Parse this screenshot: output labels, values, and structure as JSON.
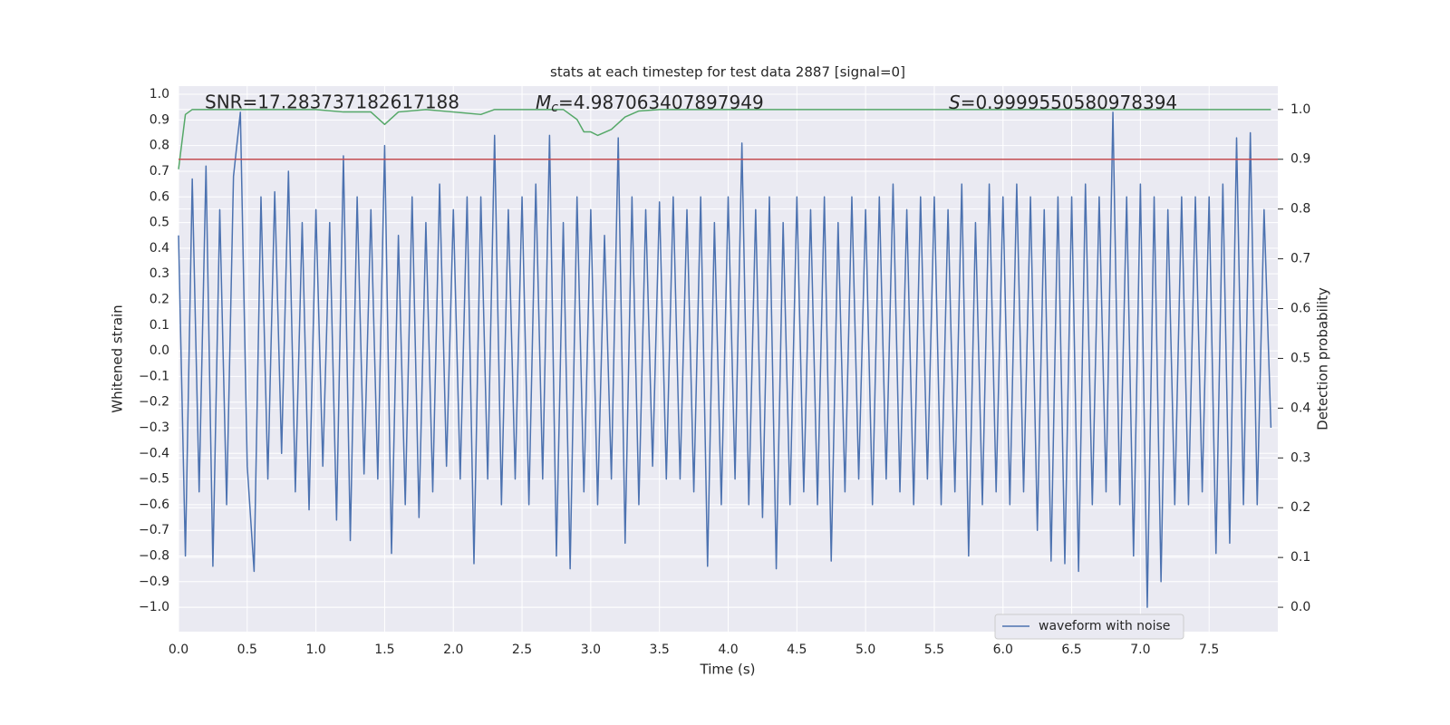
{
  "chart_data": {
    "type": "line",
    "title": "stats at each timestep for test data 2887 [signal=0]",
    "xlabel": "Time (s)",
    "ylabel": "Whitened strain",
    "y2label": "Detection probability",
    "annotations": [
      {
        "text": "SNR=17.283737182617188"
      },
      {
        "symbol": "M",
        "sub": "c",
        "text": "=4.987063407897949"
      },
      {
        "symbol": "S",
        "text": "=0.9999550580978394"
      }
    ],
    "xlim": [
      0,
      8
    ],
    "ylim": [
      -1.095,
      1.032
    ],
    "y2lim": [
      -0.049,
      1.047
    ],
    "xticks": [
      {
        "value": 0,
        "label": "0.0"
      },
      0.5,
      {
        "value": 1,
        "label": "1.0"
      },
      1.5,
      {
        "value": 2,
        "label": "2.0"
      },
      2.5,
      {
        "value": 3,
        "label": "3.0"
      },
      3.5,
      {
        "value": 4,
        "label": "4.0"
      },
      4.5,
      {
        "value": 5,
        "label": "5.0"
      },
      5.5,
      {
        "value": 6,
        "label": "6.0"
      },
      6.5,
      {
        "value": 7,
        "label": "7.0"
      },
      7.5
    ],
    "yticks": [
      {
        "value": -1.0,
        "label": "−1.0"
      },
      {
        "value": -0.9,
        "label": "−0.9"
      },
      {
        "value": -0.8,
        "label": "−0.8"
      },
      {
        "value": -0.7,
        "label": "−0.7"
      },
      {
        "value": -0.6,
        "label": "−0.6"
      },
      {
        "value": -0.5,
        "label": "−0.5"
      },
      {
        "value": -0.4,
        "label": "−0.4"
      },
      {
        "value": -0.3,
        "label": "−0.3"
      },
      {
        "value": -0.2,
        "label": "−0.2"
      },
      {
        "value": -0.1,
        "label": "−0.1"
      },
      {
        "value": 0,
        "label": "0.0"
      },
      0.1,
      0.2,
      0.3,
      0.4,
      0.5,
      0.6,
      0.7,
      0.8,
      0.9,
      {
        "value": 1.0,
        "label": "1.0"
      }
    ],
    "y2ticks": [
      {
        "value": 0,
        "label": "0.0"
      },
      0.1,
      0.2,
      0.3,
      0.4,
      0.5,
      0.6,
      0.7,
      0.8,
      0.9,
      {
        "value": 1.0,
        "label": "1.0"
      }
    ],
    "grid": true,
    "legend": "lower right",
    "threshold": {
      "value": 0.9,
      "color": "#c44e52",
      "axis": "y2"
    },
    "series": [
      {
        "name": "waveform with noise",
        "color": "#4c72b0",
        "x": [
          0,
          0.05,
          0.1,
          0.15,
          0.2,
          0.25,
          0.3,
          0.35,
          0.4,
          0.45,
          0.5,
          0.55,
          0.6,
          0.65,
          0.7,
          0.75,
          0.8,
          0.85,
          0.9,
          0.95,
          1,
          1.05,
          1.1,
          1.15,
          1.2,
          1.25,
          1.3,
          1.35,
          1.4,
          1.45,
          1.5,
          1.55,
          1.6,
          1.65,
          1.7,
          1.75,
          1.8,
          1.85,
          1.9,
          1.95,
          2,
          2.05,
          2.1,
          2.15,
          2.2,
          2.25,
          2.3,
          2.35,
          2.4,
          2.45,
          2.5,
          2.55,
          2.6,
          2.65,
          2.7,
          2.75,
          2.8,
          2.85,
          2.9,
          2.95,
          3,
          3.05,
          3.1,
          3.15,
          3.2,
          3.25,
          3.3,
          3.35,
          3.4,
          3.45,
          3.5,
          3.55,
          3.6,
          3.65,
          3.7,
          3.75,
          3.8,
          3.85,
          3.9,
          3.95,
          4,
          4.05,
          4.1,
          4.15,
          4.2,
          4.25,
          4.3,
          4.35,
          4.4,
          4.45,
          4.5,
          4.55,
          4.6,
          4.65,
          4.7,
          4.75,
          4.8,
          4.85,
          4.9,
          4.95,
          5,
          5.05,
          5.1,
          5.15,
          5.2,
          5.25,
          5.3,
          5.35,
          5.4,
          5.45,
          5.5,
          5.55,
          5.6,
          5.65,
          5.7,
          5.75,
          5.8,
          5.85,
          5.9,
          5.95,
          6,
          6.05,
          6.1,
          6.15,
          6.2,
          6.25,
          6.3,
          6.35,
          6.4,
          6.45,
          6.5,
          6.55,
          6.6,
          6.65,
          6.7,
          6.75,
          6.8,
          6.85,
          6.9,
          6.95,
          7,
          7.05,
          7.1,
          7.15,
          7.2,
          7.25,
          7.3,
          7.35,
          7.4,
          7.45,
          7.5,
          7.55,
          7.6,
          7.65,
          7.7,
          7.75,
          7.8,
          7.85,
          7.9,
          7.95
        ],
        "values": [
          0.45,
          -0.8,
          0.67,
          -0.55,
          0.72,
          -0.84,
          0.55,
          -0.6,
          0.68,
          0.93,
          -0.45,
          -0.86,
          0.6,
          -0.5,
          0.62,
          -0.4,
          0.7,
          -0.55,
          0.5,
          -0.62,
          0.55,
          -0.45,
          0.5,
          -0.66,
          0.76,
          -0.74,
          0.6,
          -0.48,
          0.55,
          -0.5,
          0.8,
          -0.79,
          0.45,
          -0.6,
          0.6,
          -0.65,
          0.5,
          -0.55,
          0.65,
          -0.45,
          0.55,
          -0.5,
          0.6,
          -0.83,
          0.6,
          -0.5,
          0.84,
          -0.6,
          0.55,
          -0.5,
          0.6,
          -0.6,
          0.65,
          -0.5,
          0.84,
          -0.8,
          0.5,
          -0.85,
          0.6,
          -0.55,
          0.55,
          -0.6,
          0.45,
          -0.5,
          0.83,
          -0.75,
          0.6,
          -0.6,
          0.55,
          -0.45,
          0.58,
          -0.5,
          0.6,
          -0.5,
          0.55,
          -0.55,
          0.6,
          -0.84,
          0.5,
          -0.6,
          0.6,
          -0.5,
          0.81,
          -0.6,
          0.55,
          -0.65,
          0.6,
          -0.85,
          0.5,
          -0.6,
          0.6,
          -0.55,
          0.55,
          -0.6,
          0.6,
          -0.82,
          0.5,
          -0.55,
          0.6,
          -0.5,
          0.55,
          -0.6,
          0.6,
          -0.5,
          0.65,
          -0.55,
          0.55,
          -0.6,
          0.6,
          -0.5,
          0.6,
          -0.6,
          0.55,
          -0.55,
          0.65,
          -0.8,
          0.5,
          -0.6,
          0.65,
          -0.55,
          0.6,
          -0.6,
          0.65,
          -0.55,
          0.6,
          -0.7,
          0.55,
          -0.82,
          0.6,
          -0.83,
          0.6,
          -0.86,
          0.65,
          -0.6,
          0.6,
          -0.55,
          0.93,
          -0.6,
          0.6,
          -0.8,
          0.65,
          -1.0,
          0.6,
          -0.9,
          0.55,
          -0.6,
          0.6,
          -0.6,
          0.6,
          -0.55,
          0.6,
          -0.79,
          0.65,
          -0.75,
          0.83,
          -0.6,
          0.85,
          -0.6,
          0.55,
          -0.3
        ]
      },
      {
        "color": "#55a868",
        "axis": "y2",
        "x": [
          0,
          0.05,
          0.1,
          0.5,
          1.0,
          1.2,
          1.4,
          1.5,
          1.6,
          1.8,
          2.0,
          2.2,
          2.3,
          2.8,
          2.9,
          2.95,
          3.0,
          3.05,
          3.15,
          3.25,
          3.35,
          3.5,
          7.95
        ],
        "values": [
          0.88,
          0.99,
          1.0,
          1.0,
          1.0,
          0.995,
          0.995,
          0.97,
          0.995,
          1.0,
          0.995,
          0.99,
          1.0,
          1.0,
          0.98,
          0.955,
          0.955,
          0.948,
          0.96,
          0.985,
          0.997,
          1.0,
          1.0
        ]
      }
    ]
  }
}
